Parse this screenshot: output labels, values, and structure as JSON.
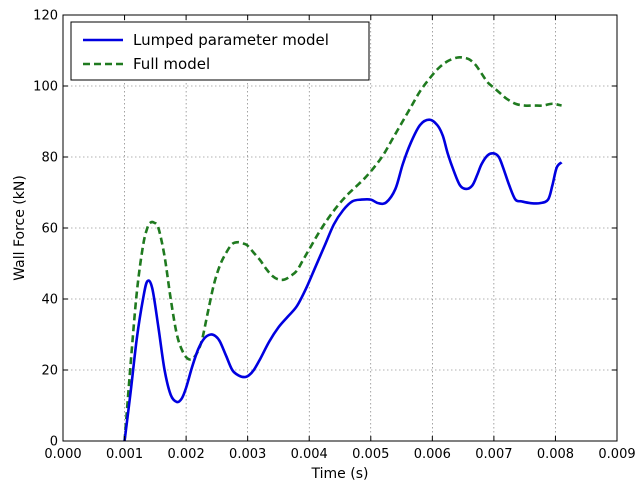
{
  "chart_data": {
    "type": "line",
    "title": "",
    "xlabel": "Time (s)",
    "ylabel": "Wall Force (kN)",
    "xlim": [
      0.0,
      0.009
    ],
    "ylim": [
      0,
      120
    ],
    "x_ticks": [
      0.0,
      0.001,
      0.002,
      0.003,
      0.004,
      0.005,
      0.006,
      0.007,
      0.008,
      0.009
    ],
    "x_tick_labels": [
      "0.000",
      "0.001",
      "0.002",
      "0.003",
      "0.004",
      "0.005",
      "0.006",
      "0.007",
      "0.008",
      "0.009"
    ],
    "y_ticks": [
      0,
      20,
      40,
      60,
      80,
      100,
      120
    ],
    "y_tick_labels": [
      "0",
      "20",
      "40",
      "60",
      "80",
      "100",
      "120"
    ],
    "grid": true,
    "legend_position": "top-left",
    "series": [
      {
        "name": "Lumped parameter model",
        "color": "#0000e0",
        "style": "solid",
        "x": [
          0.001,
          0.0011,
          0.0012,
          0.0013,
          0.00137,
          0.00145,
          0.00155,
          0.00165,
          0.00175,
          0.00185,
          0.00193,
          0.002,
          0.0021,
          0.0022,
          0.0023,
          0.0024,
          0.00248,
          0.00255,
          0.00265,
          0.00275,
          0.00285,
          0.00295,
          0.00302,
          0.0031,
          0.0032,
          0.00335,
          0.0035,
          0.00365,
          0.0038,
          0.00395,
          0.0041,
          0.00425,
          0.0044,
          0.00455,
          0.0047,
          0.00485,
          0.005,
          0.00512,
          0.00525,
          0.0054,
          0.00552,
          0.00565,
          0.0058,
          0.00595,
          0.00608,
          0.00617,
          0.00625,
          0.00635,
          0.00645,
          0.00655,
          0.00665,
          0.00673,
          0.0068,
          0.0069,
          0.007,
          0.00708,
          0.00715,
          0.00725,
          0.00735,
          0.00745,
          0.0076,
          0.00775,
          0.00788,
          0.00795,
          0.00802,
          0.0081
        ],
        "values": [
          0,
          14,
          29,
          40,
          45,
          43,
          32,
          20,
          13,
          11,
          12,
          15,
          21,
          26,
          29,
          30,
          29.5,
          28,
          24,
          20,
          18.5,
          18,
          18.5,
          20,
          23,
          28,
          32,
          35,
          38,
          43,
          49,
          55,
          61,
          65,
          67.5,
          68,
          68,
          67,
          67.2,
          71,
          78,
          84,
          89,
          90.5,
          89,
          86,
          81,
          76,
          72,
          71,
          72,
          75,
          78,
          80.5,
          81,
          80,
          77,
          72,
          68,
          67.5,
          67,
          67,
          68,
          72,
          77,
          78.5
        ]
      },
      {
        "name": "Full model",
        "color": "#1f7a1f",
        "style": "dashed",
        "x": [
          0.001,
          0.0011,
          0.0012,
          0.0013,
          0.00137,
          0.00142,
          0.00148,
          0.00155,
          0.00165,
          0.00175,
          0.00185,
          0.00195,
          0.00205,
          0.00215,
          0.00225,
          0.00235,
          0.00245,
          0.00255,
          0.00265,
          0.00275,
          0.00285,
          0.00295,
          0.003,
          0.0031,
          0.0032,
          0.0033,
          0.0034,
          0.0035,
          0.0036,
          0.0037,
          0.0038,
          0.0039,
          0.004,
          0.00415,
          0.0043,
          0.00445,
          0.0046,
          0.00475,
          0.0049,
          0.00505,
          0.0052,
          0.00535,
          0.0055,
          0.00565,
          0.0058,
          0.00595,
          0.0061,
          0.00625,
          0.0064,
          0.0065,
          0.0066,
          0.0067,
          0.0068,
          0.0069,
          0.007,
          0.0071,
          0.0072,
          0.00735,
          0.0075,
          0.00765,
          0.0078,
          0.00795,
          0.0081
        ],
        "values": [
          0,
          22,
          42,
          55,
          60,
          61.5,
          61.5,
          60,
          52,
          40,
          30,
          25,
          23,
          24,
          28,
          36,
          44,
          49.5,
          53,
          55.5,
          56,
          55.5,
          55,
          53,
          51,
          48.5,
          46.5,
          45.5,
          45.5,
          46.5,
          48,
          51,
          54,
          58.5,
          62.5,
          66,
          69,
          71.5,
          74,
          77,
          80.5,
          85,
          89.5,
          94,
          98.5,
          102,
          105,
          107,
          108,
          108,
          107.5,
          106,
          103.5,
          101,
          99.5,
          98,
          96.5,
          95,
          94.5,
          94.5,
          94.5,
          95,
          94.5
        ]
      }
    ]
  }
}
